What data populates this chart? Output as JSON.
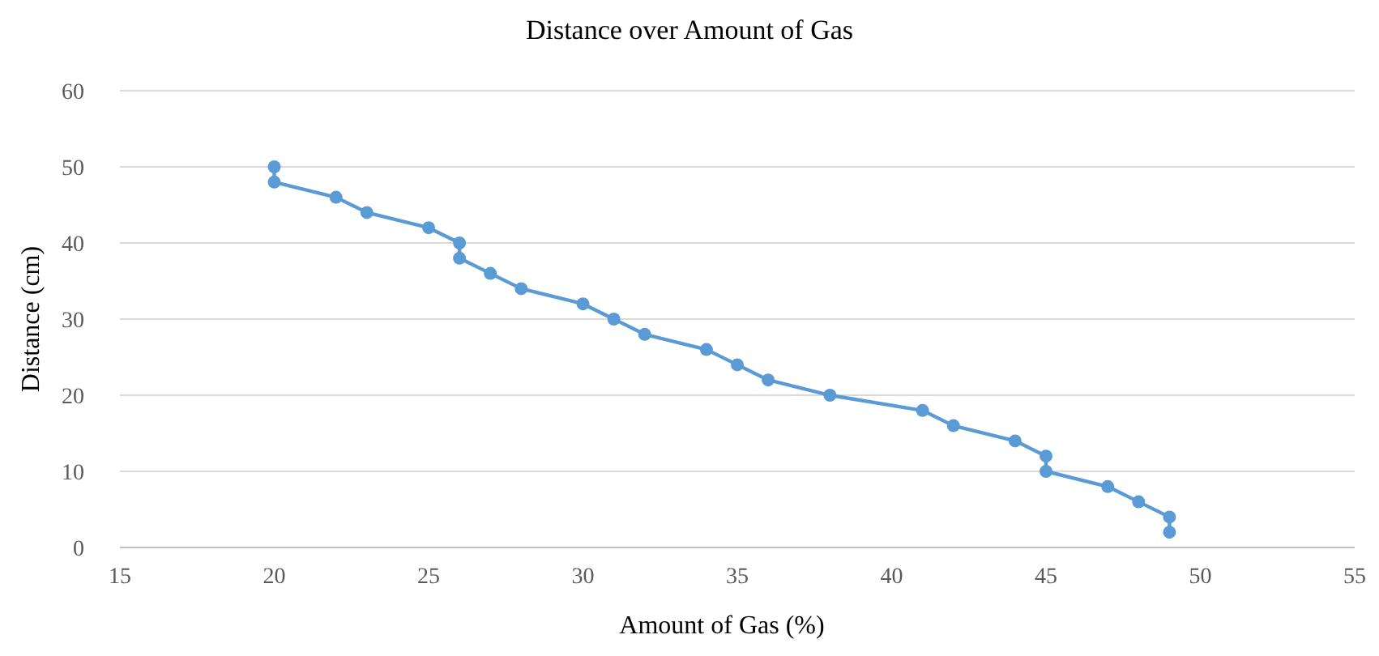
{
  "chart_data": {
    "type": "line",
    "title": "Distance over Amount of Gas",
    "xlabel": "Amount of Gas (%)",
    "ylabel": "Distance (cm)",
    "x": [
      20,
      20,
      22,
      23,
      25,
      26,
      26,
      27,
      28,
      30,
      31,
      32,
      34,
      35,
      36,
      38,
      41,
      42,
      44,
      45,
      45,
      47,
      48,
      49,
      49
    ],
    "series": [
      {
        "color": "#5b9bd5",
        "values": [
          50,
          48,
          46,
          44,
          42,
          40,
          38,
          36,
          34,
          32,
          30,
          28,
          26,
          24,
          22,
          20,
          18,
          16,
          14,
          12,
          10,
          8,
          6,
          4,
          2
        ]
      }
    ],
    "xlim": [
      15,
      55
    ],
    "xticks": [
      15,
      20,
      25,
      30,
      35,
      40,
      45,
      50,
      55
    ],
    "ylim": [
      0,
      60
    ],
    "yticks": [
      0,
      10,
      20,
      30,
      40,
      50,
      60
    ],
    "grid": "y",
    "marker": "circle",
    "line_style": "solid"
  }
}
